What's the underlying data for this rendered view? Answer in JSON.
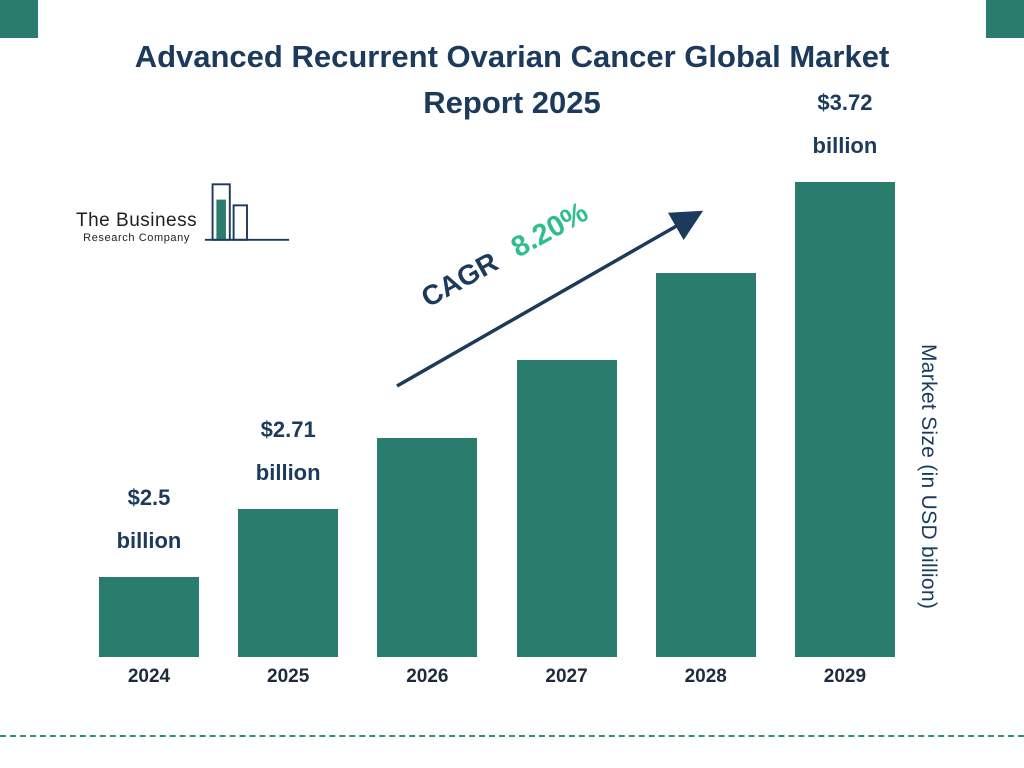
{
  "title": "Advanced Recurrent Ovarian Cancer Global Market Report 2025",
  "logo": {
    "line1": "The Business",
    "line2": "Research Company"
  },
  "cagr": {
    "prefix": "CAGR",
    "value": "8.20%"
  },
  "right_axis_label": "Market Size (in USD billion)",
  "colors": {
    "bar_teal": "#2A7C6C",
    "navy": "#1B3A5C",
    "green": "#2EBE8E",
    "dash_teal": "#2A9280"
  },
  "chart_data": {
    "type": "bar",
    "title": "Advanced Recurrent Ovarian Cancer Global Market Report 2025",
    "categories": [
      "2024",
      "2025",
      "2026",
      "2027",
      "2028",
      "2029"
    ],
    "values": [
      2.5,
      2.71,
      2.93,
      3.17,
      3.44,
      3.72
    ],
    "value_labels": [
      {
        "index": 0,
        "line1": "$2.5",
        "line2": "billion"
      },
      {
        "index": 1,
        "line1": "$2.71",
        "line2": "billion"
      },
      {
        "index": 5,
        "line1": "$3.72",
        "line2": "billion"
      }
    ],
    "annotation": "CAGR 8.20%",
    "ylabel": "Market Size (in USD billion)",
    "xlabel": "",
    "legend": false,
    "grid": false,
    "bar_color": "#2A7C6C"
  }
}
